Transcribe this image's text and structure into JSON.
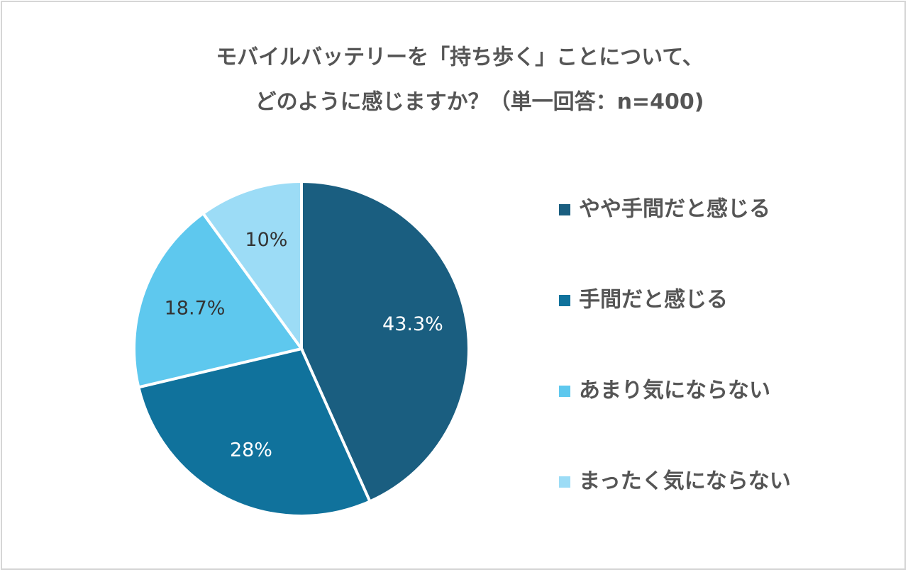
{
  "chart_data": {
    "type": "pie",
    "title": [
      "モバイルバッテリーを「持ち歩く」ことについて、",
      "どのように感じますか？（単一回答：n=400)"
    ],
    "categories": [
      "やや手間だと感じる",
      "手間だと感じる",
      "あまり気にならない",
      "まったく気にならない"
    ],
    "values": [
      43.3,
      28,
      18.7,
      10
    ],
    "value_labels": [
      "43.3%",
      "28%",
      "18.7%",
      "10%"
    ],
    "colors": [
      "#1a5e80",
      "#10729c",
      "#5ec8ee",
      "#9cdcf6"
    ],
    "legend": "right"
  }
}
